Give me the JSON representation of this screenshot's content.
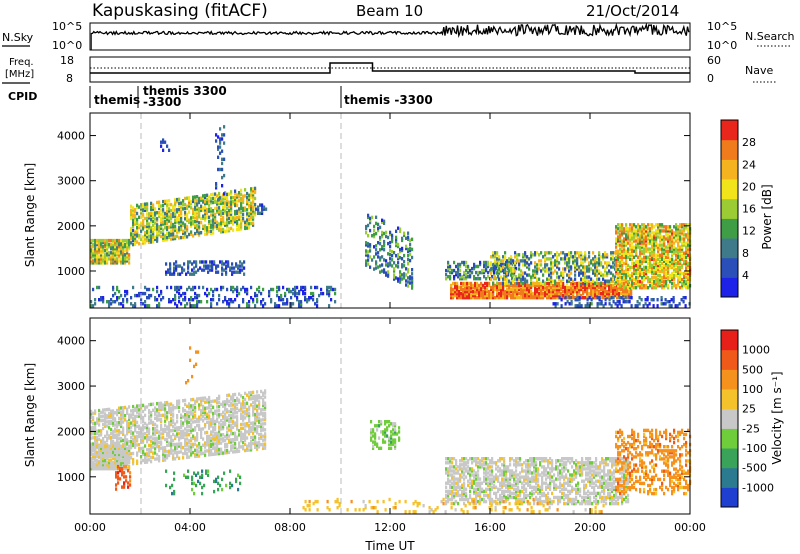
{
  "header": {
    "station": "Kapuskasing (fitACF)",
    "beam": "Beam 10",
    "date": "21/Oct/2014"
  },
  "params": {
    "nsky_label": "N.Sky",
    "nsky_ticks": [
      "10^5",
      "10^0"
    ],
    "nsearch_label": "N.Search",
    "nsearch_ticks": [
      "10^5",
      "10^0"
    ],
    "freq_label": "Freq.",
    "freq_unit": "[MHz]",
    "freq_ticks": [
      "18",
      "8"
    ],
    "nave_label": "Nave",
    "nave_ticks": [
      "60",
      "0"
    ],
    "cpid_label": "CPID",
    "cpid_entries": [
      {
        "line1": "themis",
        "line2": "",
        "time_h": 0.0
      },
      {
        "line1": "themis 3300",
        "line2": "-3300",
        "time_h": 1.9
      },
      {
        "line1": "themis -3300",
        "line2": "",
        "time_h": 10.0
      }
    ],
    "nave_high_interval_h": [
      9.6,
      11.3
    ],
    "nsky_change_h": 14.15
  },
  "chart_data": [
    {
      "type": "heatmap",
      "name": "power-panel",
      "ylabel": "Slant Range [km]",
      "xlabel": "",
      "xlim_h": [
        0,
        24
      ],
      "ylim_km": [
        180,
        4500
      ],
      "y_ticks": [
        "1000",
        "2000",
        "3000",
        "4000"
      ],
      "y_tick_values": [
        1000,
        2000,
        3000,
        4000
      ],
      "x_ticks": [
        "00:00",
        "04:00",
        "08:00",
        "12:00",
        "16:00",
        "20:00",
        "00:00"
      ],
      "x_tick_values": [
        0,
        4,
        8,
        12,
        16,
        20,
        24
      ],
      "colorbar": {
        "label": "Power [dB]",
        "ticks": [
          "4",
          "8",
          "12",
          "16",
          "20",
          "24",
          "28"
        ],
        "range": [
          0,
          32
        ],
        "colors": [
          "#1e22e8",
          "#2a4fb8",
          "#3f7a8a",
          "#3f9d46",
          "#9ccc34",
          "#f2e41a",
          "#f5b320",
          "#f07b1d",
          "#e8261c"
        ]
      },
      "scatter_regions": [
        {
          "t0": 0.0,
          "t1": 1.6,
          "r0": 1150,
          "r1": 1650,
          "mean": 18,
          "spread": 9,
          "density": 0.85
        },
        {
          "t0": 1.6,
          "t1": 6.6,
          "r0": 1550,
          "r1": 2450,
          "mean": 16,
          "spread": 9,
          "density": 0.6,
          "slope": 0.16
        },
        {
          "t0": 6.6,
          "t1": 7.1,
          "r0": 2250,
          "r1": 2450,
          "mean": 6,
          "spread": 4,
          "density": 0.4
        },
        {
          "t0": 0.0,
          "t1": 9.8,
          "r0": 200,
          "r1": 650,
          "mean": 6,
          "spread": 6,
          "density": 0.25
        },
        {
          "t0": 3.0,
          "t1": 6.2,
          "r0": 900,
          "r1": 1200,
          "mean": 6,
          "spread": 4,
          "density": 0.35
        },
        {
          "t0": 2.8,
          "t1": 3.2,
          "r0": 3600,
          "r1": 3900,
          "mean": 5,
          "spread": 3,
          "density": 0.3
        },
        {
          "t0": 5.0,
          "t1": 5.4,
          "r0": 2500,
          "r1": 4200,
          "mean": 6,
          "spread": 4,
          "density": 0.15
        },
        {
          "t0": 11.0,
          "t1": 12.9,
          "r0": 1100,
          "r1": 2300,
          "mean": 10,
          "spread": 7,
          "density": 0.3,
          "slope": -0.55
        },
        {
          "t0": 14.2,
          "t1": 17.0,
          "r0": 800,
          "r1": 1200,
          "mean": 10,
          "spread": 7,
          "density": 0.5
        },
        {
          "t0": 14.4,
          "t1": 21.6,
          "r0": 380,
          "r1": 700,
          "mean": 27,
          "spread": 4,
          "density": 0.85
        },
        {
          "t0": 16.0,
          "t1": 21.0,
          "r0": 700,
          "r1": 1400,
          "mean": 14,
          "spread": 10,
          "density": 0.45
        },
        {
          "t0": 21.0,
          "t1": 24.0,
          "r0": 600,
          "r1": 2000,
          "mean": 20,
          "spread": 9,
          "density": 0.7
        },
        {
          "t0": 18.5,
          "t1": 24.0,
          "r0": 200,
          "r1": 400,
          "mean": 6,
          "spread": 5,
          "density": 0.3
        }
      ]
    },
    {
      "type": "heatmap",
      "name": "velocity-panel",
      "ylabel": "Slant Range [km]",
      "xlabel": "Time UT",
      "xlim_h": [
        0,
        24
      ],
      "ylim_km": [
        180,
        4500
      ],
      "y_ticks": [
        "1000",
        "2000",
        "3000",
        "4000"
      ],
      "y_tick_values": [
        1000,
        2000,
        3000,
        4000
      ],
      "x_ticks": [
        "00:00",
        "04:00",
        "08:00",
        "12:00",
        "16:00",
        "20:00",
        "00:00"
      ],
      "x_tick_values": [
        0,
        4,
        8,
        12,
        16,
        20,
        24
      ],
      "colorbar": {
        "label": "Velocity [m s⁻¹]",
        "ticks": [
          "1000",
          "500",
          "100",
          "25",
          "-25",
          "-100",
          "-500",
          "-1000"
        ],
        "colors": [
          "#1f3fd0",
          "#2b7a90",
          "#3aa35a",
          "#6fcc3a",
          "#c8c8c8",
          "#f4c22a",
          "#f5921e",
          "#ef5a1b",
          "#e8201a"
        ]
      },
      "scatter_regions": [
        {
          "t0": 0.0,
          "t1": 7.0,
          "r0": 1150,
          "r1": 2450,
          "cls": 4,
          "density": 0.55,
          "slope": 0.13
        },
        {
          "t0": 0.0,
          "t1": 1.6,
          "r0": 1150,
          "r1": 1650,
          "cls": 4,
          "density": 0.8
        },
        {
          "t0": 1.0,
          "t1": 1.6,
          "r0": 700,
          "r1": 1200,
          "cls": 7,
          "density": 0.3
        },
        {
          "t0": 14.2,
          "t1": 21.5,
          "r0": 380,
          "r1": 1400,
          "cls": 4,
          "density": 0.55
        },
        {
          "t0": 21.0,
          "t1": 24.0,
          "r0": 600,
          "r1": 2000,
          "cls": 6,
          "density": 0.35
        },
        {
          "t0": 11.2,
          "t1": 12.4,
          "r0": 1600,
          "r1": 2200,
          "cls": 3,
          "density": 0.35
        },
        {
          "t0": 8.5,
          "t1": 20.5,
          "r0": 200,
          "r1": 500,
          "cls": 5,
          "density": 0.12
        },
        {
          "t0": 3.0,
          "t1": 6.2,
          "r0": 600,
          "r1": 1100,
          "cls": 2,
          "density": 0.12
        },
        {
          "t0": 3.8,
          "t1": 4.3,
          "r0": 3000,
          "r1": 3900,
          "cls": 6,
          "density": 0.1
        }
      ]
    }
  ]
}
